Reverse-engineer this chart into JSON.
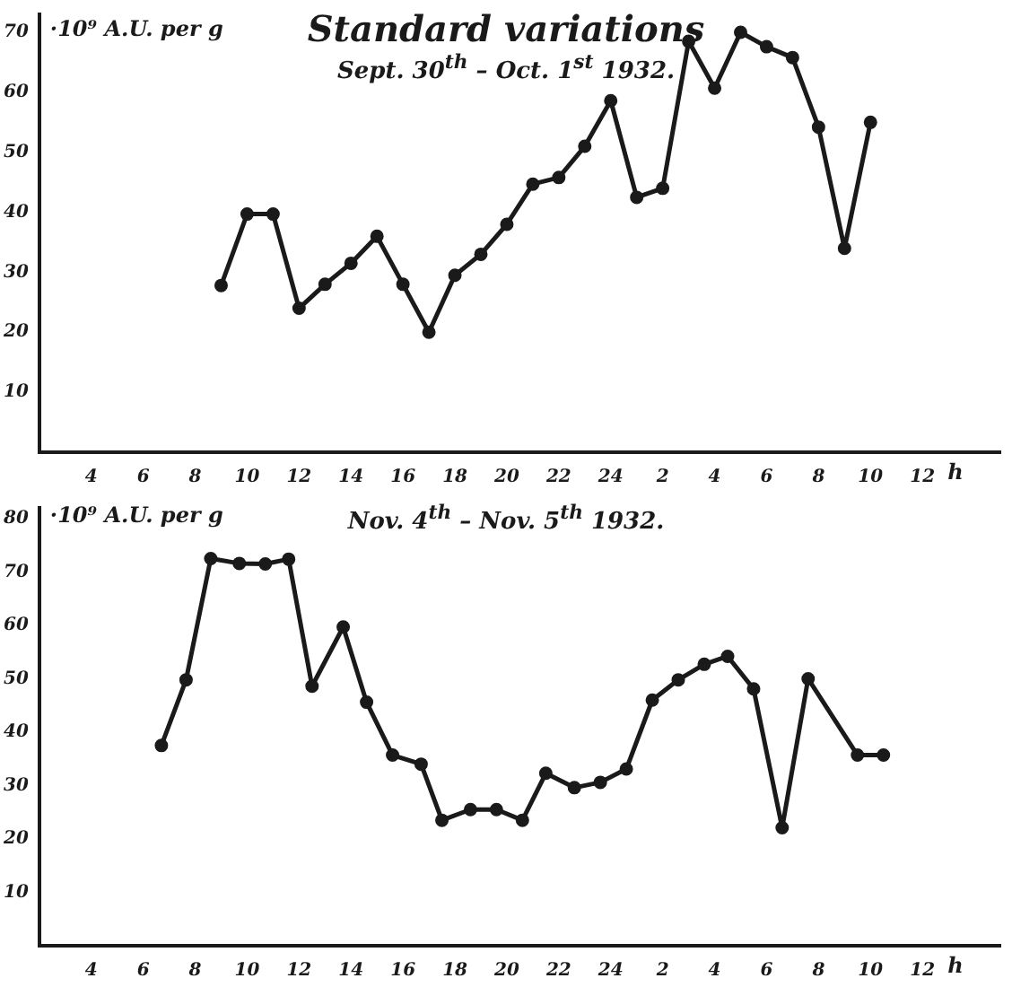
{
  "chart_data": [
    {
      "type": "line",
      "title": "Standard variations",
      "subtitle": "Sept. 30$^{th}$ – Oct. 1$^{st}$ 1932.",
      "ylabel": "·10⁹ A.U. per g",
      "xlabel": "h",
      "color": "#1a1a1a",
      "marker": "circle",
      "grid": false,
      "legend": false,
      "x": [
        "1932-09-30T09:00",
        "1932-09-30T10:00",
        "1932-09-30T11:00",
        "1932-09-30T12:00",
        "1932-09-30T13:00",
        "1932-09-30T14:00",
        "1932-09-30T15:00",
        "1932-09-30T16:00",
        "1932-09-30T17:00",
        "1932-09-30T18:00",
        "1932-09-30T19:00",
        "1932-09-30T20:00",
        "1932-09-30T21:00",
        "1932-09-30T22:00",
        "1932-09-30T23:00",
        "1932-10-01T00:00",
        "1932-10-01T01:00",
        "1932-10-01T02:00",
        "1932-10-01T03:00",
        "1932-10-01T04:00",
        "1932-10-01T05:00",
        "1932-10-01T06:00",
        "1932-10-01T07:00",
        "1932-10-01T08:00",
        "1932-10-01T09:00",
        "1932-10-01T10:00"
      ],
      "values": [
        27.8,
        39.7,
        39.7,
        24,
        28,
        31.5,
        36,
        28,
        20,
        29.5,
        33,
        38,
        44.7,
        45.8,
        51,
        58.6,
        42.5,
        44,
        68.5,
        60.7,
        70,
        67.6,
        65.8,
        54.2,
        34,
        55
      ],
      "xlim": [
        "1932-09-30T02:00",
        "1932-10-01T15:00"
      ],
      "xticks": [
        {
          "value": "1932-09-30T04:00",
          "label": "4"
        },
        {
          "value": "1932-09-30T06:00",
          "label": "6"
        },
        {
          "value": "1932-09-30T08:00",
          "label": "8"
        },
        {
          "value": "1932-09-30T10:00",
          "label": "10"
        },
        {
          "value": "1932-09-30T12:00",
          "label": "12"
        },
        {
          "value": "1932-09-30T14:00",
          "label": "14"
        },
        {
          "value": "1932-09-30T16:00",
          "label": "16"
        },
        {
          "value": "1932-09-30T18:00",
          "label": "18"
        },
        {
          "value": "1932-09-30T20:00",
          "label": "20"
        },
        {
          "value": "1932-09-30T22:00",
          "label": "22"
        },
        {
          "value": "1932-10-01T00:00",
          "label": "24"
        },
        {
          "value": "1932-10-01T02:00",
          "label": "2"
        },
        {
          "value": "1932-10-01T04:00",
          "label": "4"
        },
        {
          "value": "1932-10-01T06:00",
          "label": "6"
        },
        {
          "value": "1932-10-01T08:00",
          "label": "8"
        },
        {
          "value": "1932-10-01T10:00",
          "label": "10"
        },
        {
          "value": "1932-10-01T12:00",
          "label": "12"
        }
      ],
      "ylim": [
        0,
        73
      ],
      "yticks": [
        10,
        20,
        30,
        40,
        50,
        60,
        70
      ]
    },
    {
      "type": "line",
      "title": "Nov. 4$^{th}$ – Nov. 5$^{th}$ 1932.",
      "ylabel": "·10⁹ A.U. per g",
      "xlabel": "h",
      "color": "#1a1a1a",
      "marker": "circle",
      "grid": false,
      "legend": false,
      "x": [
        "1932-11-04T06:42",
        "1932-11-04T07:39",
        "1932-11-04T08:36",
        "1932-11-04T09:42",
        "1932-11-04T10:42",
        "1932-11-04T11:36",
        "1932-11-04T12:30",
        "1932-11-04T13:42",
        "1932-11-04T14:36",
        "1932-11-04T15:36",
        "1932-11-04T16:42",
        "1932-11-04T17:30",
        "1932-11-04T18:36",
        "1932-11-04T19:36",
        "1932-11-04T20:36",
        "1932-11-04T21:30",
        "1932-11-04T22:36",
        "1932-11-04T23:36",
        "1932-11-05T00:36",
        "1932-11-05T01:36",
        "1932-11-05T02:36",
        "1932-11-05T03:36",
        "1932-11-05T04:30",
        "1932-11-05T05:30",
        "1932-11-05T06:36",
        "1932-11-05T07:36",
        "1932-11-05T09:30",
        "1932-11-05T10:30"
      ],
      "values": [
        37.5,
        49.8,
        72.5,
        71.6,
        71.5,
        72.4,
        48.6,
        59.7,
        45.6,
        35.7,
        34,
        23.5,
        25.5,
        25.5,
        23.5,
        32.3,
        29.6,
        30.6,
        33.1,
        46,
        49.8,
        52.7,
        54.2,
        48.1,
        22.1,
        50,
        35.7,
        35.7
      ],
      "xlim": [
        "1932-11-04T02:00",
        "1932-11-05T15:00"
      ],
      "xticks": [
        {
          "value": "1932-11-04T04:00",
          "label": "4"
        },
        {
          "value": "1932-11-04T06:00",
          "label": "6"
        },
        {
          "value": "1932-11-04T08:00",
          "label": "8"
        },
        {
          "value": "1932-11-04T10:00",
          "label": "10"
        },
        {
          "value": "1932-11-04T12:00",
          "label": "12"
        },
        {
          "value": "1932-11-04T14:00",
          "label": "14"
        },
        {
          "value": "1932-11-04T16:00",
          "label": "16"
        },
        {
          "value": "1932-11-04T18:00",
          "label": "18"
        },
        {
          "value": "1932-11-04T20:00",
          "label": "20"
        },
        {
          "value": "1932-11-04T22:00",
          "label": "22"
        },
        {
          "value": "1932-11-05T00:00",
          "label": "24"
        },
        {
          "value": "1932-11-05T02:00",
          "label": "2"
        },
        {
          "value": "1932-11-05T04:00",
          "label": "4"
        },
        {
          "value": "1932-11-05T06:00",
          "label": "6"
        },
        {
          "value": "1932-11-05T08:00",
          "label": "8"
        },
        {
          "value": "1932-11-05T10:00",
          "label": "10"
        },
        {
          "value": "1932-11-05T12:00",
          "label": "12"
        }
      ],
      "ylim": [
        0,
        82
      ],
      "yticks": [
        10,
        20,
        30,
        40,
        50,
        60,
        70,
        80
      ]
    }
  ]
}
